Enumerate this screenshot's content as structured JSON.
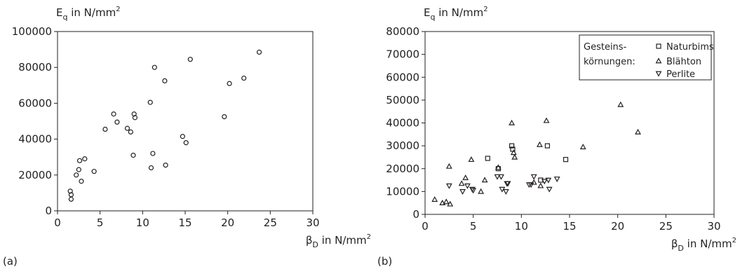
{
  "panels": [
    {
      "tag": "(a)",
      "ylabel_main": "E",
      "ylabel_sub": "q",
      "ylabel_rest": " in N/mm",
      "ylabel_sup": "2",
      "xlabel_main": "β",
      "xlabel_sub": "D",
      "xlabel_rest": " in N/mm",
      "xlabel_sup": "2"
    },
    {
      "tag": "(b)",
      "ylabel_main": "E",
      "ylabel_sub": "q",
      "ylabel_rest": " in N/mm",
      "ylabel_sup": "2",
      "xlabel_main": "β",
      "xlabel_sub": "D",
      "xlabel_rest": " in N/mm",
      "xlabel_sup": "2",
      "legend": {
        "title_line1": "Gesteins-",
        "title_line2": "körnungen:",
        "entries": [
          "Naturbims",
          "Blähton",
          "Perlite"
        ]
      }
    }
  ],
  "chart_data": [
    {
      "type": "scatter",
      "title": "",
      "xlabel": "βD in N/mm2",
      "ylabel": "Eq in N/mm2",
      "xlim": [
        0,
        30
      ],
      "ylim": [
        0,
        100000
      ],
      "x_ticks": [
        0,
        5,
        10,
        15,
        20,
        25,
        30
      ],
      "y_ticks": [
        0,
        20000,
        40000,
        60000,
        80000,
        100000
      ],
      "grid": false,
      "series": [
        {
          "marker": "circle",
          "points": [
            [
              1.5,
              11000
            ],
            [
              1.6,
              9000
            ],
            [
              1.6,
              6500
            ],
            [
              2.2,
              20000
            ],
            [
              2.5,
              23000
            ],
            [
              2.6,
              28000
            ],
            [
              3.2,
              29000
            ],
            [
              2.8,
              16500
            ],
            [
              4.3,
              22000
            ],
            [
              5.6,
              45500
            ],
            [
              6.6,
              54000
            ],
            [
              7.0,
              49500
            ],
            [
              8.2,
              46000
            ],
            [
              8.6,
              44000
            ],
            [
              9.0,
              54000
            ],
            [
              9.1,
              52000
            ],
            [
              8.9,
              31000
            ],
            [
              10.9,
              60500
            ],
            [
              11.4,
              80000
            ],
            [
              11.2,
              32000
            ],
            [
              11.0,
              24000
            ],
            [
              12.6,
              72500
            ],
            [
              12.7,
              25500
            ],
            [
              14.7,
              41500
            ],
            [
              15.1,
              38000
            ],
            [
              15.6,
              84500
            ],
            [
              19.6,
              52500
            ],
            [
              20.2,
              71000
            ],
            [
              21.9,
              74000
            ],
            [
              23.7,
              88500
            ]
          ]
        }
      ]
    },
    {
      "type": "scatter",
      "title": "",
      "xlabel": "βD in N/mm2",
      "ylabel": "Eq in N/mm2",
      "xlim": [
        0,
        30
      ],
      "ylim": [
        0,
        80000
      ],
      "x_ticks": [
        0,
        5,
        10,
        15,
        20,
        25,
        30
      ],
      "y_ticks": [
        0,
        10000,
        20000,
        30000,
        40000,
        50000,
        60000,
        70000,
        80000
      ],
      "grid": false,
      "legend_position": "top-right",
      "series": [
        {
          "name": "Naturbims",
          "marker": "square",
          "points": [
            [
              6.5,
              24500
            ],
            [
              7.6,
              20000
            ],
            [
              9.0,
              30000
            ],
            [
              9.1,
              28500
            ],
            [
              12.7,
              30000
            ],
            [
              14.6,
              24000
            ],
            [
              12.0,
              15000
            ]
          ]
        },
        {
          "name": "Blähton",
          "marker": "triangle-up",
          "points": [
            [
              1.0,
              6500
            ],
            [
              1.8,
              5000
            ],
            [
              2.2,
              5500
            ],
            [
              2.6,
              4500
            ],
            [
              2.5,
              21000
            ],
            [
              3.8,
              13500
            ],
            [
              4.2,
              16000
            ],
            [
              4.8,
              24000
            ],
            [
              5.8,
              10000
            ],
            [
              6.2,
              15000
            ],
            [
              7.6,
              20500
            ],
            [
              9.0,
              40000
            ],
            [
              9.2,
              27000
            ],
            [
              9.3,
              25000
            ],
            [
              11.3,
              14000
            ],
            [
              11.9,
              30500
            ],
            [
              12.0,
              12500
            ],
            [
              12.6,
              41000
            ],
            [
              16.4,
              29500
            ],
            [
              20.3,
              48000
            ],
            [
              22.1,
              36000
            ]
          ]
        },
        {
          "name": "Perlite",
          "marker": "triangle-down",
          "points": [
            [
              2.5,
              12500
            ],
            [
              3.9,
              10000
            ],
            [
              4.4,
              12500
            ],
            [
              4.9,
              11000
            ],
            [
              5.0,
              10500
            ],
            [
              7.5,
              16500
            ],
            [
              7.9,
              16500
            ],
            [
              8.0,
              11000
            ],
            [
              8.4,
              10000
            ],
            [
              8.5,
              13500
            ],
            [
              8.6,
              13500
            ],
            [
              10.8,
              13000
            ],
            [
              11.0,
              13000
            ],
            [
              11.3,
              16500
            ],
            [
              12.4,
              14500
            ],
            [
              12.8,
              15000
            ],
            [
              12.9,
              11000
            ],
            [
              13.7,
              15500
            ]
          ]
        }
      ]
    }
  ]
}
